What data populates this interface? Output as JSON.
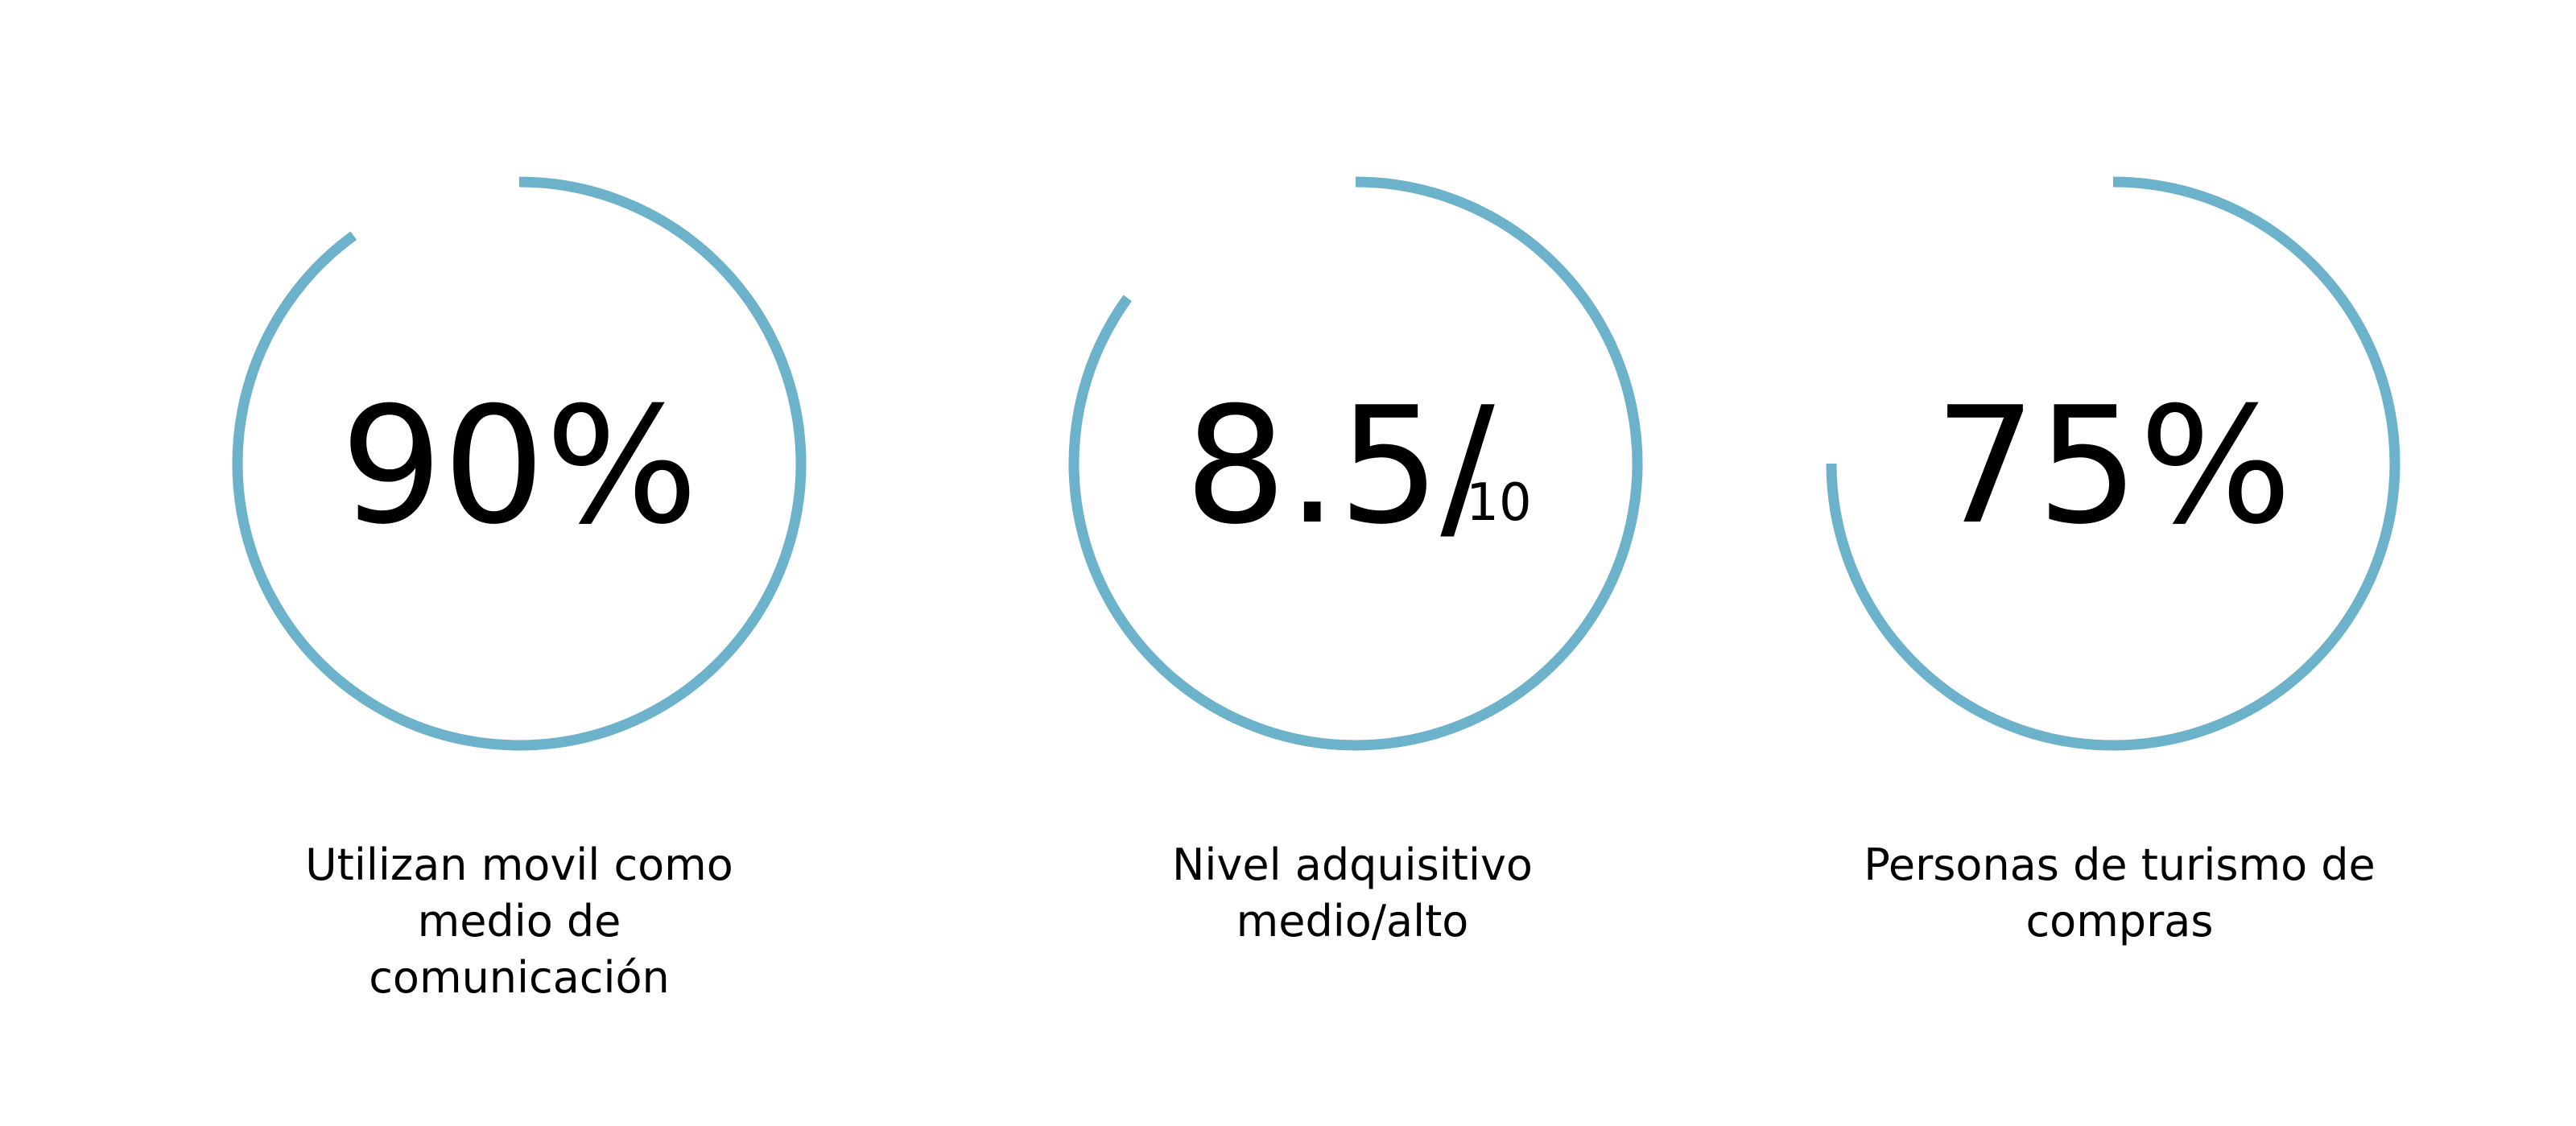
{
  "chart_data": {
    "type": "radial-gauge",
    "accent_color": "#6cb2ca",
    "gauges": [
      {
        "value_label": "90%",
        "denominator": "",
        "fraction": 0.9,
        "caption": "Utilizan movil como\nmedio de\ncomunicación"
      },
      {
        "value_label": "8.5/",
        "denominator": "10",
        "fraction": 0.85,
        "caption": "Nivel adquisitivo\nmedio/alto"
      },
      {
        "value_label": "75%",
        "denominator": "",
        "fraction": 0.75,
        "caption": "Personas de turismo de\ncompras"
      }
    ]
  }
}
